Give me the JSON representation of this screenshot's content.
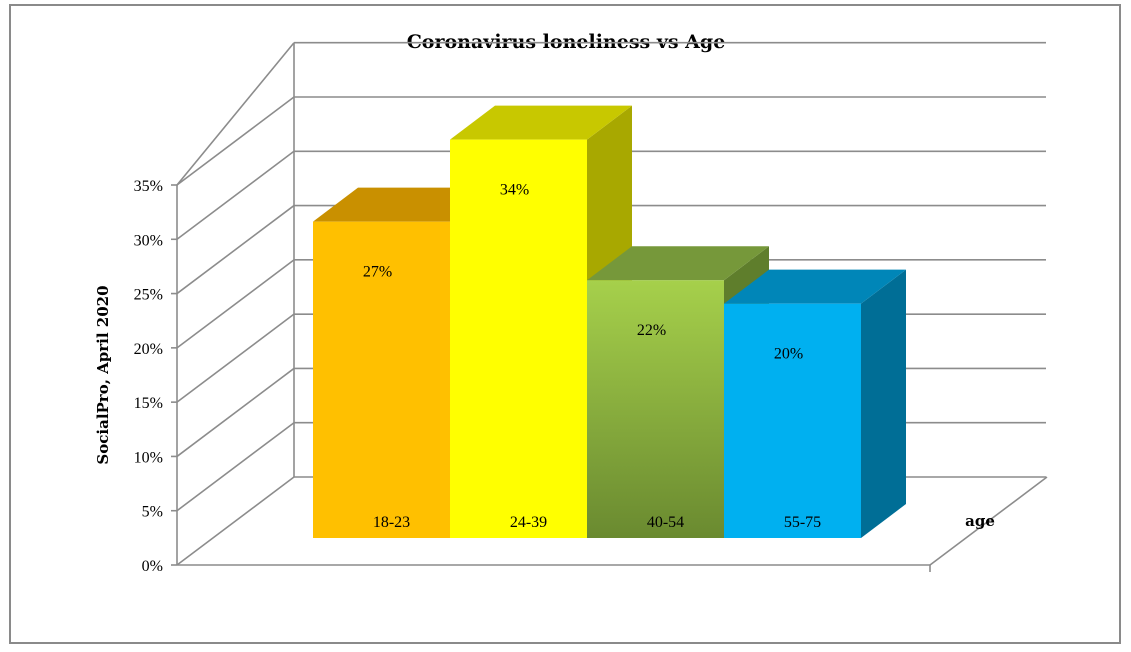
{
  "chart_data": {
    "type": "bar",
    "title": "Coronavirus loneliness vs Age",
    "xlabel": "age",
    "ylabel": "SocialPro, April 2020",
    "categories": [
      "18-23",
      "24-39",
      "40-54",
      "55-75"
    ],
    "values": [
      27,
      34,
      22,
      20
    ],
    "value_labels": [
      "27%",
      "34%",
      "22%",
      "20%"
    ],
    "ylim": [
      0,
      35
    ],
    "yticks": [
      0,
      5,
      10,
      15,
      20,
      25,
      30,
      35
    ],
    "ytick_labels": [
      "0%",
      "5%",
      "10%",
      "15%",
      "20%",
      "25%",
      "30%",
      "35%"
    ],
    "grid": true,
    "style": "3d-column",
    "colors": [
      {
        "front": "#ffc000",
        "top": "#c99000",
        "side": "#b08000"
      },
      {
        "front": "#ffff00",
        "top": "#c8c800",
        "side": "#a8a800"
      },
      {
        "front": "#9bc846",
        "top": "#76983a",
        "side": "#5f7e2c"
      },
      {
        "front": "#00b0f0",
        "top": "#0086b8",
        "side": "#006e96"
      }
    ]
  }
}
